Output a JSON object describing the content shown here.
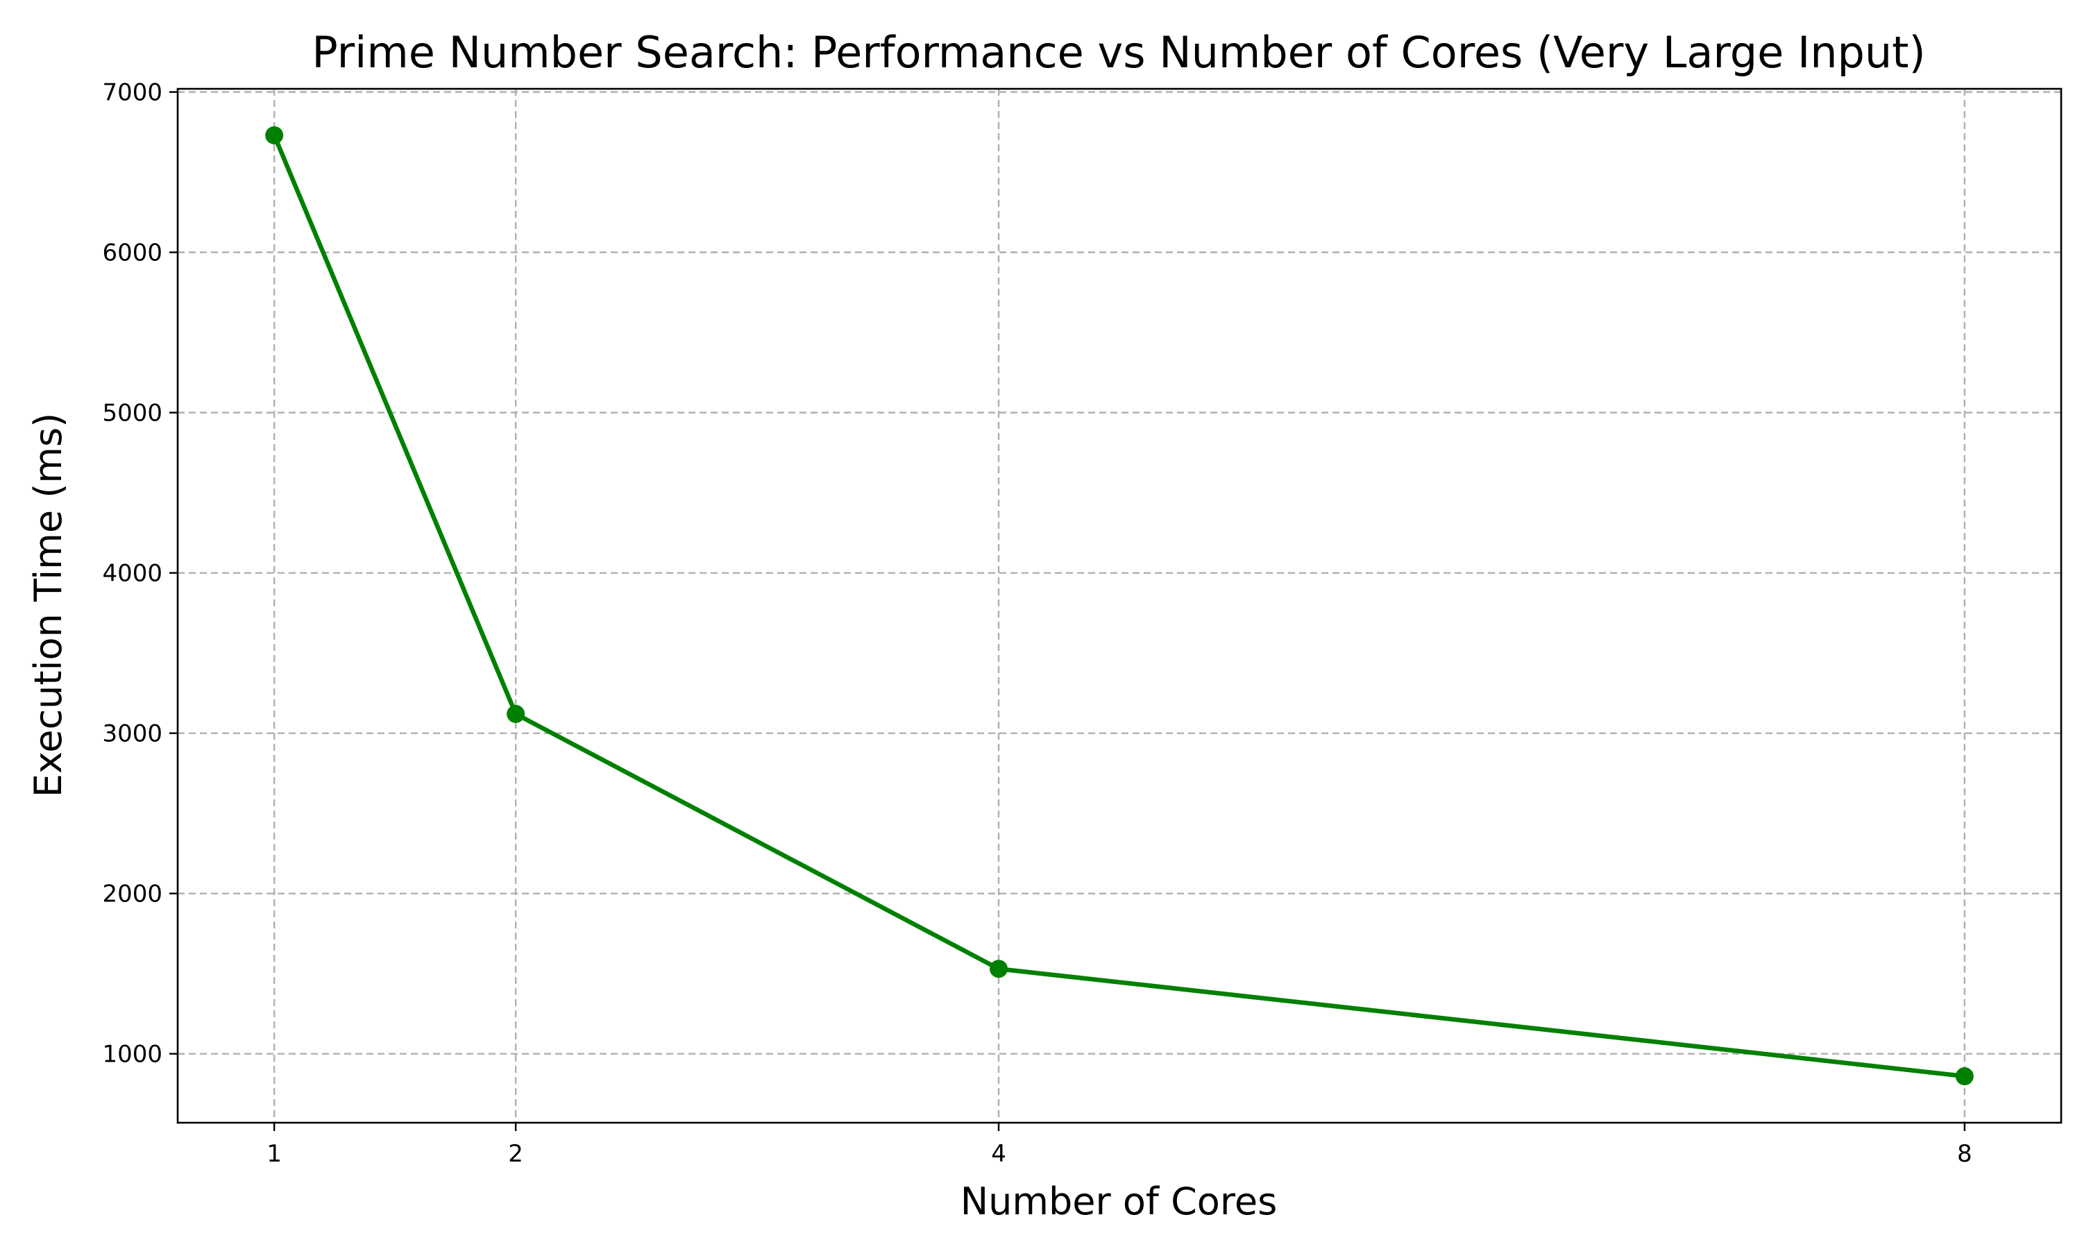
{
  "chart_data": {
    "type": "line",
    "title": "Prime Number Search: Performance vs Number of Cores (Very Large Input)",
    "xlabel": "Number of Cores",
    "ylabel": "Execution Time (ms)",
    "x": [
      1,
      2,
      4,
      8
    ],
    "x_ticks": [
      1,
      2,
      4,
      8
    ],
    "y_ticks": [
      1000,
      2000,
      3000,
      4000,
      5000,
      6000,
      7000
    ],
    "xlim": [
      0.6,
      8.4
    ],
    "ylim": [
      570,
      7020
    ],
    "grid": true,
    "series": [
      {
        "values": [
          6730,
          3120,
          1530,
          860
        ],
        "color": "#008000",
        "marker": "circle"
      }
    ]
  }
}
